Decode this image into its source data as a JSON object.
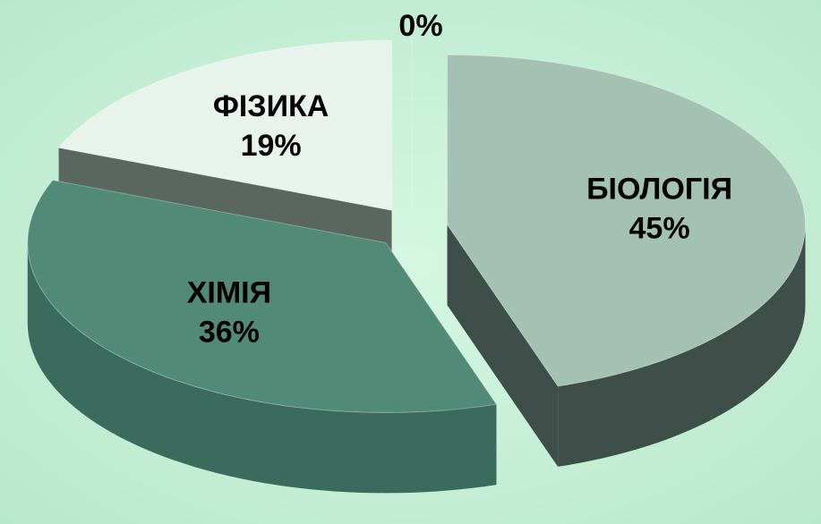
{
  "chart_data": {
    "type": "pie",
    "categories": [
      "БІОЛОГІЯ",
      "ХІМІЯ",
      "ФІЗИКА",
      null
    ],
    "values": [
      45,
      36,
      19,
      0
    ],
    "value_labels": [
      "45%",
      "36%",
      "19%",
      "0%"
    ],
    "colors": [
      "#a3c2b4",
      "#528a78",
      "#e8f3ec",
      "#6d8f80"
    ],
    "side_colors": [
      "#3d4f48",
      "#3a6b5c",
      "#5a6660",
      "#4a5f56"
    ],
    "start_angle": 0,
    "direction": "clockwise",
    "exploded": true
  }
}
